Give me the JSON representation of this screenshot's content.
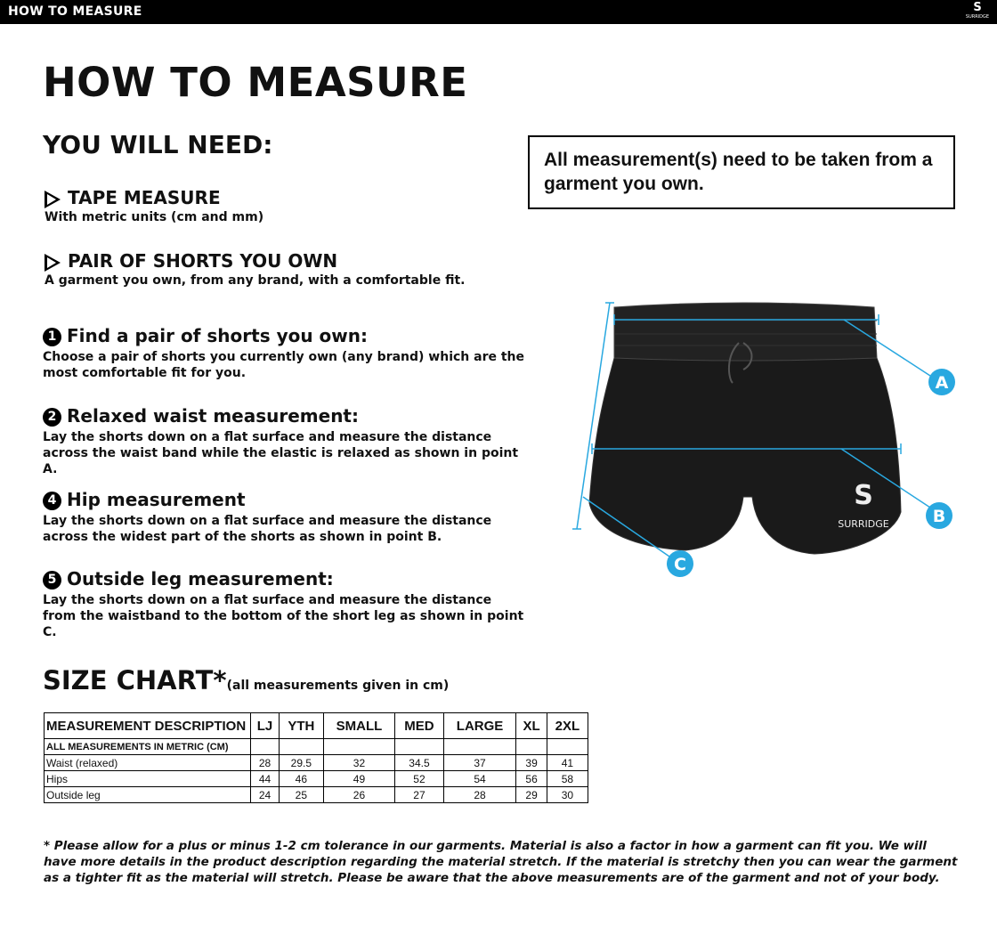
{
  "header": {
    "title": "HOW TO MEASURE",
    "logo_text": "SURRIDGE"
  },
  "page_title": "HOW TO MEASURE",
  "you_will_need": {
    "heading": "YOU WILL NEED:",
    "items": [
      {
        "title": "TAPE MEASURE",
        "desc": "With metric units (cm and mm)"
      },
      {
        "title": "PAIR OF SHORTS YOU OWN",
        "desc": "A garment you own, from any brand, with a comfortable fit."
      }
    ]
  },
  "notice": "All measurement(s) need to be taken from a garment you own.",
  "steps": [
    {
      "num": "1",
      "title": "Find a pair of shorts you own:",
      "desc": "Choose a pair of shorts you currently own (any brand) which are the most comfortable fit for you."
    },
    {
      "num": "2",
      "title": "Relaxed waist measurement:",
      "desc": "Lay the shorts down on a flat surface and measure the distance across the waist band while the elastic is relaxed as shown in point A."
    },
    {
      "num": "4",
      "title": "Hip measurement",
      "desc": "Lay the shorts down on a flat surface and measure the distance across the widest part of the shorts as shown in point B."
    },
    {
      "num": "5",
      "title": "Outside leg measurement:",
      "desc": "Lay the shorts down on a flat surface and measure the distance from the waistband to the bottom of the short leg as shown in point C."
    }
  ],
  "diagram": {
    "labels": [
      "A",
      "B",
      "C"
    ],
    "brand": "SURRIDGE",
    "accent": "#29a8e0"
  },
  "size_chart": {
    "title": "SIZE CHART*",
    "subtitle": "(all measurements given in cm)",
    "headers": [
      "MEASUREMENT DESCRIPTION",
      "LJ",
      "YTH",
      "SMALL",
      "MED",
      "LARGE",
      "XL",
      "2XL"
    ],
    "metric_note": "ALL MEASUREMENTS IN METRIC (CM)",
    "rows": [
      {
        "label": "Waist (relaxed)",
        "values": [
          "28",
          "29.5",
          "32",
          "34.5",
          "37",
          "39",
          "41"
        ]
      },
      {
        "label": "Hips",
        "values": [
          "44",
          "46",
          "49",
          "52",
          "54",
          "56",
          "58"
        ]
      },
      {
        "label": "Outside  leg",
        "values": [
          "24",
          "25",
          "26",
          "27",
          "28",
          "29",
          "30"
        ]
      }
    ]
  },
  "footnote": "* Please allow for a plus or minus 1-2 cm tolerance in our garments. Material is also a factor in how a garment can fit you. We will have more details in the product description regarding the material stretch.  If the material is stretchy then you can wear the garment as a tighter fit as the material will stretch.  Please be aware that the above measurements are of the garment and not of your body."
}
